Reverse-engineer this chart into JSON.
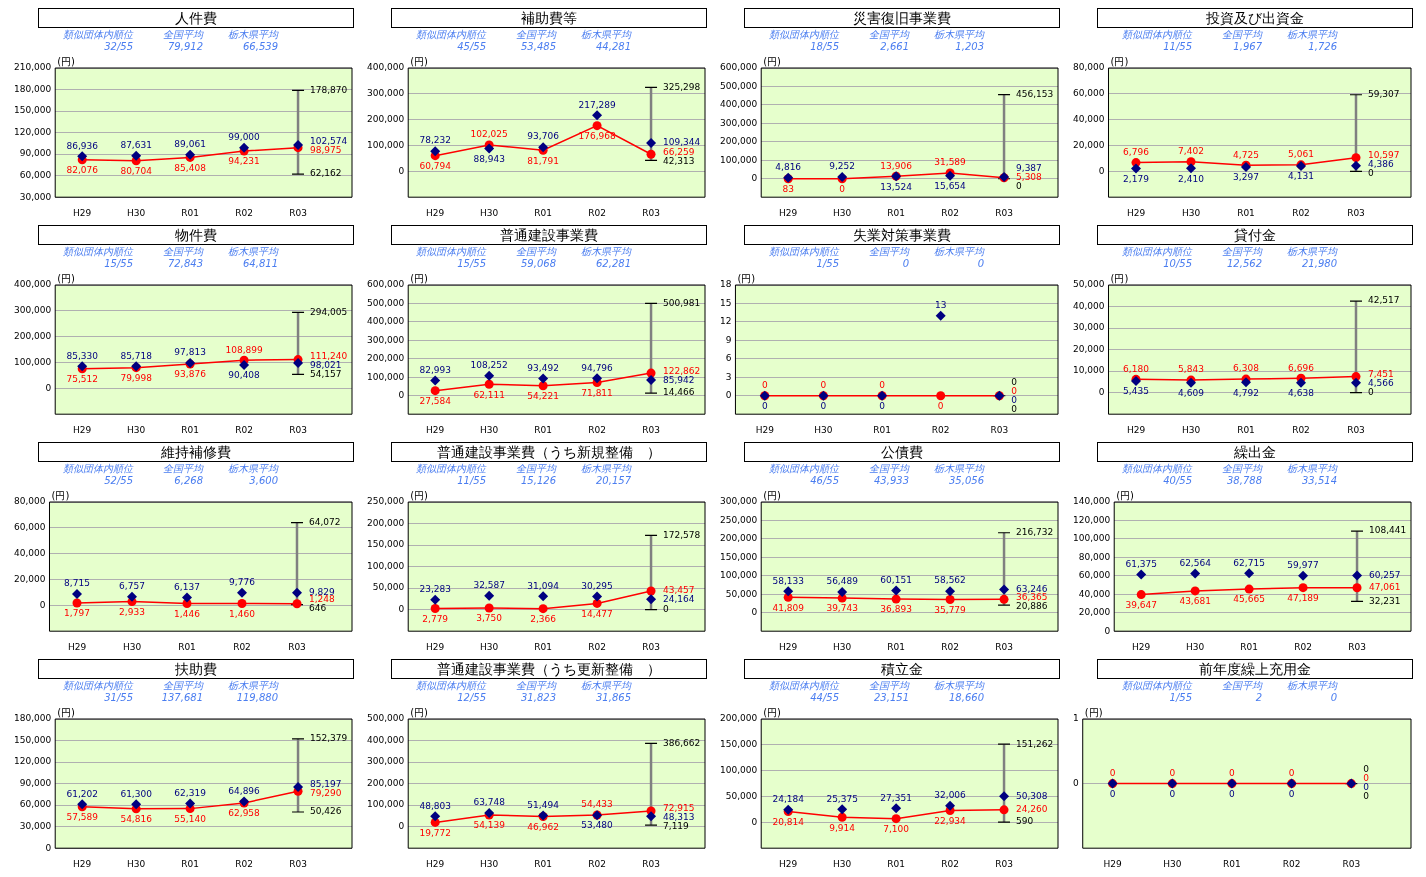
{
  "chart_data": [
    {
      "type": "line",
      "title": "人件費",
      "ylabel": "(円)",
      "annotations": [
        "類似団体内順位",
        "32/55",
        "全国平均",
        "79,912",
        "栃木県平均",
        "66,539",
        {
          "text": "178,870",
          "x": "R03",
          "y": 178870
        },
        {
          "text": "62,162",
          "x": "R03",
          "y": 62162
        }
      ],
      "categories": [
        "H29",
        "H30",
        "R01",
        "R02",
        "R03"
      ],
      "ylim": [
        30000,
        210000
      ],
      "yticks": [
        {
          "value": 30000,
          "label": "30,000"
        },
        {
          "value": 60000,
          "label": "60,000"
        },
        {
          "value": 90000,
          "label": "90,000"
        },
        {
          "value": 120000,
          "label": "120,000"
        },
        {
          "value": 150000,
          "label": "150,000"
        },
        {
          "value": 180000,
          "label": "180,000"
        },
        {
          "value": 210000,
          "label": "210,000"
        }
      ],
      "grid": "y",
      "series": [
        {
          "type": "scatter",
          "marker": "diamond",
          "color": "#000080",
          "values": [
            86936,
            87631,
            89061,
            99000,
            102574
          ],
          "value_labels": [
            "86,936",
            "87,631",
            "89,061",
            "99,000",
            "102,574"
          ],
          "errors": [
            null,
            null,
            null,
            null,
            [
              62162,
              178870
            ]
          ]
        },
        {
          "type": "line",
          "marker": "circle",
          "color": "#ff0000",
          "values": [
            82076,
            80704,
            85408,
            94231,
            98975
          ],
          "value_labels": [
            "82,076",
            "80,704",
            "85,408",
            "94,231",
            "98,975"
          ]
        }
      ]
    },
    {
      "type": "line",
      "title": "補助費等",
      "ylabel": "(円)",
      "annotations": [
        "類似団体内順位",
        "45/55",
        "全国平均",
        "53,485",
        "栃木県平均",
        "44,281",
        {
          "text": "325,298",
          "x": "R03",
          "y": 325298
        },
        {
          "text": "42,313",
          "x": "R03",
          "y": 42313
        }
      ],
      "categories": [
        "H29",
        "H30",
        "R01",
        "R02",
        "R03"
      ],
      "ylim": [
        -100000,
        400000
      ],
      "yticks": [
        0,
        {
          "value": 100000,
          "label": "100,000"
        },
        {
          "value": 200000,
          "label": "200,000"
        },
        {
          "value": 300000,
          "label": "300,000"
        },
        {
          "value": 400000,
          "label": "400,000"
        }
      ],
      "grid": "y",
      "series": [
        {
          "type": "scatter",
          "marker": "diamond",
          "color": "#000080",
          "values": [
            78232,
            88943,
            93706,
            217289,
            109344
          ],
          "value_labels": [
            "78,232",
            "88,943",
            "93,706",
            "217,289",
            "109,344"
          ],
          "errors": [
            null,
            null,
            null,
            null,
            [
              42313,
              325298
            ]
          ]
        },
        {
          "type": "line",
          "marker": "circle",
          "color": "#ff0000",
          "values": [
            60794,
            102025,
            81791,
            176968,
            66259
          ],
          "value_labels": [
            "60,794",
            "102,025",
            "81,791",
            "176,968",
            "66,259"
          ]
        }
      ]
    },
    {
      "type": "line",
      "title": "災害復旧事業費",
      "ylabel": "(円)",
      "annotations": [
        "類似団体内順位",
        "18/55",
        "全国平均",
        "2,661",
        "栃木県平均",
        "1,203",
        {
          "text": "456,153",
          "x": "R03",
          "y": 456153
        },
        {
          "text": "0",
          "x": "R03",
          "y": 0
        }
      ],
      "categories": [
        "H29",
        "H30",
        "R01",
        "R02",
        "R03"
      ],
      "ylim": [
        -100000,
        600000
      ],
      "yticks": [
        0,
        {
          "value": 100000,
          "label": "100,000"
        },
        {
          "value": 200000,
          "label": "200,000"
        },
        {
          "value": 300000,
          "label": "300,000"
        },
        {
          "value": 400000,
          "label": "400,000"
        },
        {
          "value": 500000,
          "label": "500,000"
        },
        {
          "value": 600000,
          "label": "600,000"
        }
      ],
      "grid": "y",
      "series": [
        {
          "type": "scatter",
          "marker": "diamond",
          "color": "#000080",
          "values": [
            4816,
            9252,
            13524,
            15654,
            9387
          ],
          "value_labels": [
            "4,816",
            "9,252",
            "13,524",
            "15,654",
            "9,387"
          ],
          "errors": [
            null,
            null,
            null,
            null,
            [
              0,
              456153
            ]
          ]
        },
        {
          "type": "line",
          "marker": "circle",
          "color": "#ff0000",
          "values": [
            83,
            0,
            13906,
            31589,
            5308
          ],
          "value_labels": [
            "83",
            "0",
            "13,906",
            "31,589",
            "5,308"
          ]
        }
      ]
    },
    {
      "type": "line",
      "title": "投資及び出資金",
      "ylabel": "(円)",
      "annotations": [
        "類似団体内順位",
        "11/55",
        "全国平均",
        "1,967",
        "栃木県平均",
        "1,726",
        {
          "text": "59,307",
          "x": "R03",
          "y": 59307
        },
        {
          "text": "0",
          "x": "R03",
          "y": 0
        }
      ],
      "categories": [
        "H29",
        "H30",
        "R01",
        "R02",
        "R03"
      ],
      "ylim": [
        -20000,
        80000
      ],
      "yticks": [
        0,
        {
          "value": 20000,
          "label": "20,000"
        },
        {
          "value": 40000,
          "label": "40,000"
        },
        {
          "value": 60000,
          "label": "60,000"
        },
        {
          "value": 80000,
          "label": "80,000"
        }
      ],
      "grid": "y",
      "series": [
        {
          "type": "scatter",
          "marker": "diamond",
          "color": "#000080",
          "values": [
            2179,
            2410,
            3297,
            4131,
            4386
          ],
          "value_labels": [
            "2,179",
            "2,410",
            "3,297",
            "4,131",
            "4,386"
          ],
          "errors": [
            null,
            null,
            null,
            null,
            [
              0,
              59307
            ]
          ]
        },
        {
          "type": "line",
          "marker": "circle",
          "color": "#ff0000",
          "values": [
            6796,
            7402,
            4725,
            5061,
            10597
          ],
          "value_labels": [
            "6,796",
            "7,402",
            "4,725",
            "5,061",
            "10,597"
          ]
        }
      ]
    },
    {
      "type": "line",
      "title": "物件費",
      "ylabel": "(円)",
      "annotations": [
        "類似団体内順位",
        "15/55",
        "全国平均",
        "72,843",
        "栃木県平均",
        "64,811",
        {
          "text": "294,005",
          "x": "R03",
          "y": 294005
        },
        {
          "text": "54,157",
          "x": "R03",
          "y": 54157
        }
      ],
      "categories": [
        "H29",
        "H30",
        "R01",
        "R02",
        "R03"
      ],
      "ylim": [
        -100000,
        400000
      ],
      "yticks": [
        0,
        {
          "value": 100000,
          "label": "100,000"
        },
        {
          "value": 200000,
          "label": "200,000"
        },
        {
          "value": 300000,
          "label": "300,000"
        },
        {
          "value": 400000,
          "label": "400,000"
        }
      ],
      "grid": "y",
      "series": [
        {
          "type": "scatter",
          "marker": "diamond",
          "color": "#000080",
          "values": [
            85330,
            85718,
            97813,
            90408,
            98021
          ],
          "value_labels": [
            "85,330",
            "85,718",
            "97,813",
            "90,408",
            "98,021"
          ],
          "errors": [
            null,
            null,
            null,
            null,
            [
              54157,
              294005
            ]
          ]
        },
        {
          "type": "line",
          "marker": "circle",
          "color": "#ff0000",
          "values": [
            75512,
            79998,
            93876,
            108899,
            111240
          ],
          "value_labels": [
            "75,512",
            "79,998",
            "93,876",
            "108,899",
            "111,240"
          ]
        }
      ]
    },
    {
      "type": "line",
      "title": "普通建設事業費",
      "ylabel": "(円)",
      "annotations": [
        "類似団体内順位",
        "15/55",
        "全国平均",
        "59,068",
        "栃木県平均",
        "62,281",
        {
          "text": "500,981",
          "x": "R03",
          "y": 500981
        },
        {
          "text": "14,466",
          "x": "R03",
          "y": 14466
        }
      ],
      "categories": [
        "H29",
        "H30",
        "R01",
        "R02",
        "R03"
      ],
      "ylim": [
        -100000,
        600000
      ],
      "yticks": [
        0,
        {
          "value": 100000,
          "label": "100,000"
        },
        {
          "value": 200000,
          "label": "200,000"
        },
        {
          "value": 300000,
          "label": "300,000"
        },
        {
          "value": 400000,
          "label": "400,000"
        },
        {
          "value": 500000,
          "label": "500,000"
        },
        {
          "value": 600000,
          "label": "600,000"
        }
      ],
      "grid": "y",
      "series": [
        {
          "type": "scatter",
          "marker": "diamond",
          "color": "#000080",
          "values": [
            82993,
            108252,
            93492,
            94796,
            85942
          ],
          "value_labels": [
            "82,993",
            "108,252",
            "93,492",
            "94,796",
            "85,942"
          ],
          "errors": [
            null,
            null,
            null,
            null,
            [
              14466,
              500981
            ]
          ]
        },
        {
          "type": "line",
          "marker": "circle",
          "color": "#ff0000",
          "values": [
            27584,
            62111,
            54221,
            71811,
            122862
          ],
          "value_labels": [
            "27,584",
            "62,111",
            "54,221",
            "71,811",
            "122,862"
          ]
        }
      ]
    },
    {
      "type": "line",
      "title": "失業対策事業費",
      "ylabel": "(円)",
      "annotations": [
        "類似団体内順位",
        "1/55",
        "全国平均",
        "0",
        "栃木県平均",
        "0",
        {
          "text": "0",
          "x": "R03",
          "y": 0
        },
        {
          "text": "0",
          "x": "R03",
          "y": 0
        }
      ],
      "categories": [
        "H29",
        "H30",
        "R01",
        "R02",
        "R03"
      ],
      "ylim": [
        -3,
        18
      ],
      "yticks": [
        0,
        3,
        6,
        9,
        12,
        15,
        18
      ],
      "grid": "y",
      "series": [
        {
          "type": "scatter",
          "marker": "diamond",
          "color": "#000080",
          "values": [
            0,
            0,
            0,
            13,
            0
          ],
          "value_labels": [
            "0",
            "0",
            "0",
            "13",
            "0"
          ],
          "errors": [
            null,
            null,
            null,
            null,
            [
              0,
              0
            ]
          ]
        },
        {
          "type": "line",
          "marker": "circle",
          "color": "#ff0000",
          "values": [
            0,
            0,
            0,
            0,
            0
          ],
          "value_labels": [
            "0",
            "0",
            "0",
            "0",
            "0"
          ]
        }
      ]
    },
    {
      "type": "line",
      "title": "貸付金",
      "ylabel": "(円)",
      "annotations": [
        "類似団体内順位",
        "10/55",
        "全国平均",
        "12,562",
        "栃木県平均",
        "21,980",
        {
          "text": "42,517",
          "x": "R03",
          "y": 42517
        },
        {
          "text": "0",
          "x": "R03",
          "y": 0
        }
      ],
      "categories": [
        "H29",
        "H30",
        "R01",
        "R02",
        "R03"
      ],
      "ylim": [
        -10000,
        50000
      ],
      "yticks": [
        0,
        {
          "value": 10000,
          "label": "10,000"
        },
        {
          "value": 20000,
          "label": "20,000"
        },
        {
          "value": 30000,
          "label": "30,000"
        },
        {
          "value": 40000,
          "label": "40,000"
        },
        {
          "value": 50000,
          "label": "50,000"
        }
      ],
      "grid": "y",
      "series": [
        {
          "type": "scatter",
          "marker": "diamond",
          "color": "#000080",
          "values": [
            5435,
            4609,
            4792,
            4638,
            4566
          ],
          "value_labels": [
            "5,435",
            "4,609",
            "4,792",
            "4,638",
            "4,566"
          ],
          "errors": [
            null,
            null,
            null,
            null,
            [
              0,
              42517
            ]
          ]
        },
        {
          "type": "line",
          "marker": "circle",
          "color": "#ff0000",
          "values": [
            6180,
            5843,
            6308,
            6696,
            7451
          ],
          "value_labels": [
            "6,180",
            "5,843",
            "6,308",
            "6,696",
            "7,451"
          ]
        }
      ]
    },
    {
      "type": "line",
      "title": "維持補修費",
      "ylabel": "(円)",
      "annotations": [
        "類似団体内順位",
        "52/55",
        "全国平均",
        "6,268",
        "栃木県平均",
        "3,600",
        {
          "text": "64,072",
          "x": "R03",
          "y": 64072
        },
        {
          "text": "646",
          "x": "R03",
          "y": 646
        }
      ],
      "categories": [
        "H29",
        "H30",
        "R01",
        "R02",
        "R03"
      ],
      "ylim": [
        -20000,
        80000
      ],
      "yticks": [
        0,
        {
          "value": 20000,
          "label": "20,000"
        },
        {
          "value": 40000,
          "label": "40,000"
        },
        {
          "value": 60000,
          "label": "60,000"
        },
        {
          "value": 80000,
          "label": "80,000"
        }
      ],
      "grid": "y",
      "series": [
        {
          "type": "scatter",
          "marker": "diamond",
          "color": "#000080",
          "values": [
            8715,
            6757,
            6137,
            9776,
            9829
          ],
          "value_labels": [
            "8,715",
            "6,757",
            "6,137",
            "9,776",
            "9,829"
          ],
          "errors": [
            null,
            null,
            null,
            null,
            [
              646,
              64072
            ]
          ]
        },
        {
          "type": "line",
          "marker": "circle",
          "color": "#ff0000",
          "values": [
            1797,
            2933,
            1446,
            1460,
            1248
          ],
          "value_labels": [
            "1,797",
            "2,933",
            "1,446",
            "1,460",
            "1,248"
          ]
        }
      ]
    },
    {
      "type": "line",
      "title": "普通建設事業費（うち新規整備　）",
      "ylabel": "(円)",
      "annotations": [
        "類似団体内順位",
        "11/55",
        "全国平均",
        "15,126",
        "栃木県平均",
        "20,157",
        {
          "text": "172,578",
          "x": "R03",
          "y": 172578
        },
        {
          "text": "0",
          "x": "R03",
          "y": 0
        }
      ],
      "categories": [
        "H29",
        "H30",
        "R01",
        "R02",
        "R03"
      ],
      "ylim": [
        -50000,
        250000
      ],
      "yticks": [
        0,
        {
          "value": 50000,
          "label": "50,000"
        },
        {
          "value": 100000,
          "label": "100,000"
        },
        {
          "value": 150000,
          "label": "150,000"
        },
        {
          "value": 200000,
          "label": "200,000"
        },
        {
          "value": 250000,
          "label": "250,000"
        }
      ],
      "grid": "y",
      "series": [
        {
          "type": "scatter",
          "marker": "diamond",
          "color": "#000080",
          "values": [
            23283,
            32587,
            31094,
            30295,
            24164
          ],
          "value_labels": [
            "23,283",
            "32,587",
            "31,094",
            "30,295",
            "24,164"
          ],
          "errors": [
            null,
            null,
            null,
            null,
            [
              0,
              172578
            ]
          ]
        },
        {
          "type": "line",
          "marker": "circle",
          "color": "#ff0000",
          "values": [
            2779,
            3750,
            2366,
            14477,
            43457
          ],
          "value_labels": [
            "2,779",
            "3,750",
            "2,366",
            "14,477",
            "43,457"
          ]
        }
      ]
    },
    {
      "type": "line",
      "title": "公債費",
      "ylabel": "(円)",
      "annotations": [
        "類似団体内順位",
        "46/55",
        "全国平均",
        "43,933",
        "栃木県平均",
        "35,056",
        {
          "text": "216,732",
          "x": "R03",
          "y": 216732
        },
        {
          "text": "20,886",
          "x": "R03",
          "y": 20886
        }
      ],
      "categories": [
        "H29",
        "H30",
        "R01",
        "R02",
        "R03"
      ],
      "ylim": [
        -50000,
        300000
      ],
      "yticks": [
        0,
        {
          "value": 50000,
          "label": "50,000"
        },
        {
          "value": 100000,
          "label": "100,000"
        },
        {
          "value": 150000,
          "label": "150,000"
        },
        {
          "value": 200000,
          "label": "200,000"
        },
        {
          "value": 250000,
          "label": "250,000"
        },
        {
          "value": 300000,
          "label": "300,000"
        }
      ],
      "grid": "y",
      "series": [
        {
          "type": "scatter",
          "marker": "diamond",
          "color": "#000080",
          "values": [
            58133,
            56489,
            60151,
            58562,
            63246
          ],
          "value_labels": [
            "58,133",
            "56,489",
            "60,151",
            "58,562",
            "63,246"
          ],
          "errors": [
            null,
            null,
            null,
            null,
            [
              20886,
              216732
            ]
          ]
        },
        {
          "type": "line",
          "marker": "circle",
          "color": "#ff0000",
          "values": [
            41809,
            39743,
            36893,
            35779,
            36365
          ],
          "value_labels": [
            "41,809",
            "39,743",
            "36,893",
            "35,779",
            "36,365"
          ]
        }
      ]
    },
    {
      "type": "line",
      "title": "繰出金",
      "ylabel": "(円)",
      "annotations": [
        "類似団体内順位",
        "40/55",
        "全国平均",
        "38,788",
        "栃木県平均",
        "33,514",
        {
          "text": "108,441",
          "x": "R03",
          "y": 108441
        },
        {
          "text": "32,231",
          "x": "R03",
          "y": 32231
        }
      ],
      "categories": [
        "H29",
        "H30",
        "R01",
        "R02",
        "R03"
      ],
      "ylim": [
        0,
        140000
      ],
      "yticks": [
        0,
        {
          "value": 20000,
          "label": "20,000"
        },
        {
          "value": 40000,
          "label": "40,000"
        },
        {
          "value": 60000,
          "label": "60,000"
        },
        {
          "value": 80000,
          "label": "80,000"
        },
        {
          "value": 100000,
          "label": "100,000"
        },
        {
          "value": 120000,
          "label": "120,000"
        },
        {
          "value": 140000,
          "label": "140,000"
        }
      ],
      "grid": "y",
      "series": [
        {
          "type": "scatter",
          "marker": "diamond",
          "color": "#000080",
          "values": [
            61375,
            62564,
            62715,
            59977,
            60257
          ],
          "value_labels": [
            "61,375",
            "62,564",
            "62,715",
            "59,977",
            "60,257"
          ],
          "errors": [
            null,
            null,
            null,
            null,
            [
              32231,
              108441
            ]
          ]
        },
        {
          "type": "line",
          "marker": "circle",
          "color": "#ff0000",
          "values": [
            39647,
            43681,
            45665,
            47189,
            47061
          ],
          "value_labels": [
            "39,647",
            "43,681",
            "45,665",
            "47,189",
            "47,061"
          ]
        }
      ]
    },
    {
      "type": "line",
      "title": "扶助費",
      "ylabel": "(円)",
      "annotations": [
        "類似団体内順位",
        "31/55",
        "全国平均",
        "137,681",
        "栃木県平均",
        "119,880",
        {
          "text": "152,379",
          "x": "R03",
          "y": 152379
        },
        {
          "text": "50,426",
          "x": "R03",
          "y": 50426
        }
      ],
      "categories": [
        "H29",
        "H30",
        "R01",
        "R02",
        "R03"
      ],
      "ylim": [
        0,
        180000
      ],
      "yticks": [
        0,
        {
          "value": 30000,
          "label": "30,000"
        },
        {
          "value": 60000,
          "label": "60,000"
        },
        {
          "value": 90000,
          "label": "90,000"
        },
        {
          "value": 120000,
          "label": "120,000"
        },
        {
          "value": 150000,
          "label": "150,000"
        },
        {
          "value": 180000,
          "label": "180,000"
        }
      ],
      "grid": "y",
      "series": [
        {
          "type": "scatter",
          "marker": "diamond",
          "color": "#000080",
          "values": [
            61202,
            61300,
            62319,
            64896,
            85197
          ],
          "value_labels": [
            "61,202",
            "61,300",
            "62,319",
            "64,896",
            "85,197"
          ],
          "errors": [
            null,
            null,
            null,
            null,
            [
              50426,
              152379
            ]
          ]
        },
        {
          "type": "line",
          "marker": "circle",
          "color": "#ff0000",
          "values": [
            57589,
            54816,
            55140,
            62958,
            79290
          ],
          "value_labels": [
            "57,589",
            "54,816",
            "55,140",
            "62,958",
            "79,290"
          ]
        }
      ]
    },
    {
      "type": "line",
      "title": "普通建設事業費（うち更新整備　）",
      "ylabel": "(円)",
      "annotations": [
        "類似団体内順位",
        "12/55",
        "全国平均",
        "31,823",
        "栃木県平均",
        "31,865",
        {
          "text": "386,662",
          "x": "R03",
          "y": 386662
        },
        {
          "text": "7,119",
          "x": "R03",
          "y": 7119
        }
      ],
      "categories": [
        "H29",
        "H30",
        "R01",
        "R02",
        "R03"
      ],
      "ylim": [
        -100000,
        500000
      ],
      "yticks": [
        0,
        {
          "value": 100000,
          "label": "100,000"
        },
        {
          "value": 200000,
          "label": "200,000"
        },
        {
          "value": 300000,
          "label": "300,000"
        },
        {
          "value": 400000,
          "label": "400,000"
        },
        {
          "value": 500000,
          "label": "500,000"
        }
      ],
      "grid": "y",
      "series": [
        {
          "type": "scatter",
          "marker": "diamond",
          "color": "#000080",
          "values": [
            48803,
            63748,
            51494,
            53480,
            48313
          ],
          "value_labels": [
            "48,803",
            "63,748",
            "51,494",
            "53,480",
            "48,313"
          ],
          "errors": [
            null,
            null,
            null,
            null,
            [
              7119,
              386662
            ]
          ]
        },
        {
          "type": "line",
          "marker": "circle",
          "color": "#ff0000",
          "values": [
            19772,
            54139,
            46962,
            54433,
            72915
          ],
          "value_labels": [
            "19,772",
            "54,139",
            "46,962",
            "54,433",
            "72,915"
          ]
        }
      ]
    },
    {
      "type": "line",
      "title": "積立金",
      "ylabel": "(円)",
      "annotations": [
        "類似団体内順位",
        "44/55",
        "全国平均",
        "23,151",
        "栃木県平均",
        "18,660",
        {
          "text": "151,262",
          "x": "R03",
          "y": 151262
        },
        {
          "text": "590",
          "x": "R03",
          "y": 590
        }
      ],
      "categories": [
        "H29",
        "H30",
        "R01",
        "R02",
        "R03"
      ],
      "ylim": [
        -50000,
        200000
      ],
      "yticks": [
        0,
        {
          "value": 50000,
          "label": "50,000"
        },
        {
          "value": 100000,
          "label": "100,000"
        },
        {
          "value": 150000,
          "label": "150,000"
        },
        {
          "value": 200000,
          "label": "200,000"
        }
      ],
      "grid": "y",
      "series": [
        {
          "type": "scatter",
          "marker": "diamond",
          "color": "#000080",
          "values": [
            24184,
            25375,
            27351,
            32006,
            50308
          ],
          "value_labels": [
            "24,184",
            "25,375",
            "27,351",
            "32,006",
            "50,308"
          ],
          "errors": [
            null,
            null,
            null,
            null,
            [
              590,
              151262
            ]
          ]
        },
        {
          "type": "line",
          "marker": "circle",
          "color": "#ff0000",
          "values": [
            20814,
            9914,
            7100,
            22934,
            24260
          ],
          "value_labels": [
            "20,814",
            "9,914",
            "7,100",
            "22,934",
            "24,260"
          ]
        }
      ]
    },
    {
      "type": "line",
      "title": "前年度繰上充用金",
      "ylabel": "(円)",
      "annotations": [
        "類似団体内順位",
        "1/55",
        "全国平均",
        "2",
        "栃木県平均",
        "0",
        {
          "text": "0",
          "x": "R03",
          "y": 0
        },
        {
          "text": "0",
          "x": "R03",
          "y": 0
        }
      ],
      "categories": [
        "H29",
        "H30",
        "R01",
        "R02",
        "R03"
      ],
      "ylim": [
        -1,
        1
      ],
      "yticks": [
        0,
        1
      ],
      "grid": "y",
      "series": [
        {
          "type": "scatter",
          "marker": "diamond",
          "color": "#000080",
          "values": [
            0,
            0,
            0,
            0,
            0
          ],
          "value_labels": [
            "0",
            "0",
            "0",
            "0",
            "0"
          ],
          "errors": [
            null,
            null,
            null,
            null,
            [
              0,
              0
            ]
          ]
        },
        {
          "type": "line",
          "marker": "circle",
          "color": "#ff0000",
          "values": [
            0,
            0,
            0,
            0,
            0
          ],
          "value_labels": [
            "0",
            "0",
            "0",
            "0",
            "0"
          ]
        }
      ]
    }
  ]
}
